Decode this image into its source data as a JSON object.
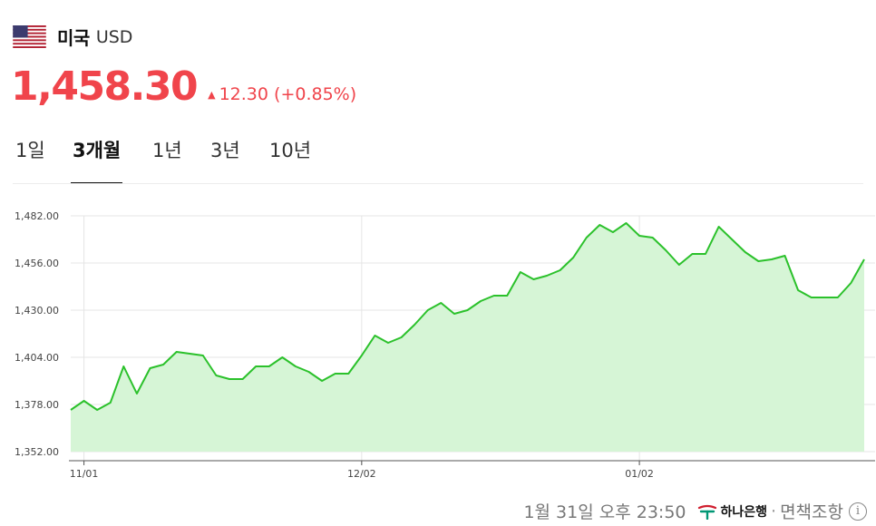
{
  "header": {
    "country": "미국",
    "currency": "USD"
  },
  "quote": {
    "rate": "1,458.30",
    "change_arrow": "▲",
    "change": "12.30 (+0.85%)"
  },
  "tabs": [
    {
      "label": "1일",
      "active": false
    },
    {
      "label": "3개월",
      "active": true
    },
    {
      "label": "1년",
      "active": false
    },
    {
      "label": "3년",
      "active": false
    },
    {
      "label": "10년",
      "active": false
    }
  ],
  "footer": {
    "timestamp": "1월 31일 오후 23:50",
    "bank": "하나은행",
    "separator": "·",
    "disclaimer": "면책조항",
    "info_icon": "info-icon"
  },
  "colors": {
    "up": "#f0444b",
    "line": "#2bc12b",
    "fill": "#d6f5d6",
    "grid": "#e5e5e5"
  },
  "chart_data": {
    "type": "area",
    "title": "",
    "xlabel": "",
    "ylabel": "",
    "ylim": [
      1352,
      1482
    ],
    "y_ticks": [
      "1,352.00",
      "1,378.00",
      "1,404.00",
      "1,430.00",
      "1,456.00",
      "1,482.00"
    ],
    "x_ticks": [
      "11/01",
      "12/02",
      "01/02"
    ],
    "grid": true,
    "series": [
      {
        "values": [
          1375,
          1380,
          1375,
          1379,
          1399,
          1384,
          1398,
          1400,
          1407,
          1406,
          1405,
          1394,
          1392,
          1392,
          1399,
          1399,
          1404,
          1399,
          1396,
          1391,
          1395,
          1395,
          1405,
          1416,
          1412,
          1415,
          1422,
          1430,
          1434,
          1428,
          1430,
          1435,
          1438,
          1438,
          1451,
          1447,
          1449,
          1452,
          1459,
          1470,
          1477,
          1473,
          1478,
          1471,
          1470,
          1463,
          1455,
          1461,
          1461,
          1476,
          1469,
          1462,
          1457,
          1458,
          1460,
          1441,
          1437,
          1437,
          1437,
          1445,
          1458
        ]
      }
    ]
  }
}
